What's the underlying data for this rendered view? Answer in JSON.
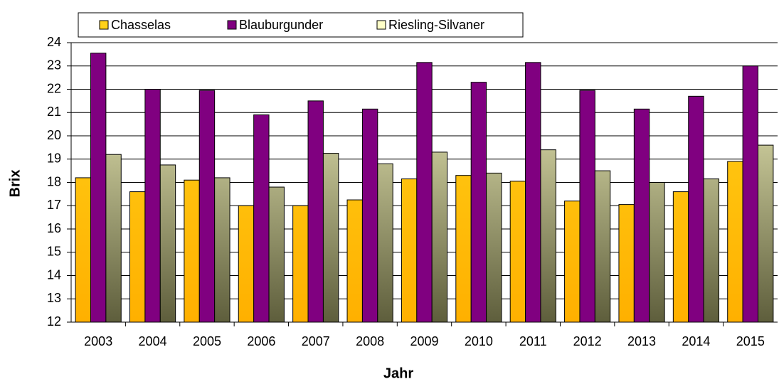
{
  "chart_data": {
    "type": "bar",
    "xlabel": "Jahr",
    "ylabel": "Brix",
    "categories": [
      "2003",
      "2004",
      "2005",
      "2006",
      "2007",
      "2008",
      "2009",
      "2010",
      "2011",
      "2012",
      "2013",
      "2014",
      "2015"
    ],
    "series": [
      {
        "name": "Chasselas",
        "color": "#ffc000",
        "gradient": [
          "#ffd21a",
          "#ffb000"
        ],
        "values": [
          18.2,
          17.6,
          18.1,
          17.0,
          17.0,
          17.25,
          18.15,
          18.3,
          18.05,
          17.2,
          17.05,
          17.6,
          18.9
        ]
      },
      {
        "name": "Blauburgunder",
        "color": "#800080",
        "gradient": [
          "#800080",
          "#800080"
        ],
        "values": [
          23.55,
          22.0,
          21.95,
          20.9,
          21.5,
          21.15,
          23.15,
          22.3,
          23.15,
          21.95,
          21.15,
          21.7,
          23.0
        ]
      },
      {
        "name": "Riesling-Silvaner",
        "color": "#ffffa0",
        "gradient": [
          "#ffffc8",
          "#5e5e3c"
        ],
        "values": [
          19.2,
          18.75,
          18.2,
          17.8,
          19.25,
          18.8,
          19.3,
          18.4,
          19.4,
          18.5,
          18.0,
          18.15,
          19.6
        ]
      }
    ],
    "ylim": [
      12,
      24
    ],
    "yticks": [
      12,
      13,
      14,
      15,
      16,
      17,
      18,
      19,
      20,
      21,
      22,
      23,
      24
    ],
    "grid": true,
    "legend": "top"
  }
}
